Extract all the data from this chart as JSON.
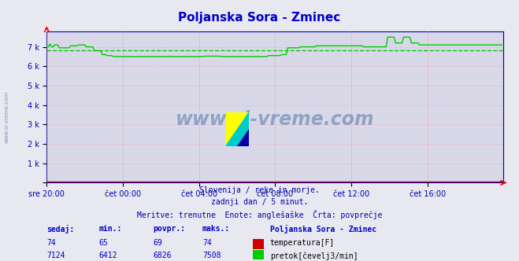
{
  "title": "Poljanska Sora - Zminec",
  "title_color": "#0000cc",
  "bg_color": "#e8e8f0",
  "plot_bg_color": "#d8d8e8",
  "grid_color": "#ff9999",
  "axis_color": "#0000aa",
  "x_labels": [
    "sre 20:00",
    "čet 00:00",
    "čet 04:00",
    "čet 08:00",
    "čet 12:00",
    "čet 16:00"
  ],
  "y_ticks": [
    0,
    1000,
    2000,
    3000,
    4000,
    5000,
    6000,
    7000
  ],
  "y_tick_labels": [
    "",
    "1 k",
    "2 k",
    "3 k",
    "4 k",
    "5 k",
    "6 k",
    "7 k"
  ],
  "ymax": 7800,
  "ymin": 0,
  "temp_color": "#cc0000",
  "flow_color": "#00cc00",
  "avg_flow": 6826,
  "avg_temp": 69,
  "watermark": "www.si-vreme.com",
  "watermark_color": "#5577aa",
  "sidebar_text": "www.si-vreme.com",
  "sidebar_color": "#5577aa",
  "footer_line1": "Slovenija / reke in morje.",
  "footer_line2": "zadnji dan / 5 minut.",
  "footer_line3": "Meritve: trenutne  Enote: anglešaške  Črta: povprečje",
  "footer_color": "#0000aa",
  "table_headers": [
    "sedaj:",
    "min.:",
    "povpr.:",
    "maks.:"
  ],
  "table_header_color": "#0000cc",
  "temp_row": [
    "74",
    "65",
    "69",
    "74"
  ],
  "flow_row": [
    "7124",
    "6412",
    "6826",
    "7508"
  ],
  "legend_label": "Poljanska Sora - Zminec",
  "legend_color": "#0000cc",
  "temp_label": "temperatura[F]",
  "flow_label": "pretok[čevelj3/min]",
  "n_points": 288,
  "x_tick_positions": [
    0,
    48,
    96,
    144,
    192,
    240
  ]
}
